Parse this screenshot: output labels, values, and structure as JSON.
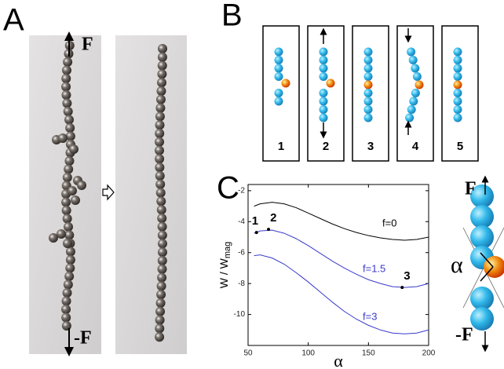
{
  "panel_a": {
    "label": "A",
    "force_top": "F",
    "force_bottom": "-F"
  },
  "panel_b": {
    "label": "B",
    "steps": [
      "1",
      "2",
      "3",
      "4",
      "5"
    ]
  },
  "panel_c": {
    "label": "C"
  },
  "inset": {
    "force_top": "F",
    "force_bottom": "-F",
    "angle": "α"
  },
  "chart_data": {
    "type": "line",
    "xlabel": "α",
    "ylabel": {
      "main": "W / W",
      "sub": "mag"
    },
    "x": [
      55,
      60,
      70,
      80,
      90,
      100,
      110,
      120,
      130,
      140,
      150,
      160,
      170,
      180,
      190,
      200
    ],
    "series": [
      {
        "name": "f=0",
        "color": "#000000",
        "values": [
          -3.0,
          -2.85,
          -2.75,
          -2.85,
          -3.1,
          -3.45,
          -3.8,
          -4.15,
          -4.45,
          -4.7,
          -4.9,
          -5.05,
          -5.15,
          -5.2,
          -5.15,
          -5.0
        ]
      },
      {
        "name": "f=1.5",
        "color": "#3a3acc",
        "values": [
          -4.75,
          -4.6,
          -4.55,
          -4.75,
          -5.1,
          -5.55,
          -6.05,
          -6.55,
          -7.0,
          -7.4,
          -7.75,
          -8.0,
          -8.2,
          -8.25,
          -8.2,
          -8.0
        ]
      },
      {
        "name": "f=3",
        "color": "#3a3acc",
        "values": [
          -6.2,
          -6.15,
          -6.35,
          -6.75,
          -7.3,
          -7.9,
          -8.55,
          -9.2,
          -9.8,
          -10.3,
          -10.7,
          -11.0,
          -11.2,
          -11.25,
          -11.2,
          -11.0
        ]
      }
    ],
    "points": {
      "x": [
        57,
        67,
        178
      ],
      "y": [
        -4.7,
        -4.5,
        -8.25
      ],
      "labels": [
        "1",
        "2",
        "3"
      ]
    },
    "xlim": [
      50,
      200
    ],
    "xticks": [
      50,
      100,
      150,
      200
    ],
    "ylim": [
      -12,
      -1.6
    ],
    "yticks": [
      -2,
      -4,
      -6,
      -8,
      -10
    ]
  }
}
